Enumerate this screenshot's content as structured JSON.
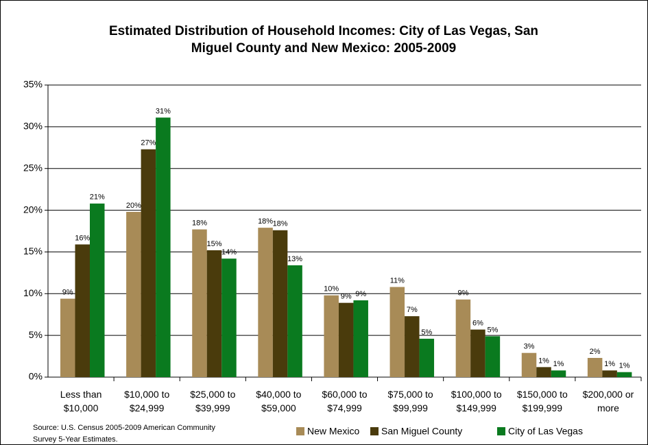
{
  "chart_data": {
    "type": "bar",
    "title": "Estimated Distribution of Household Incomes: City of Las Vegas, San\nMiguel County and New Mexico: 2005-2009",
    "source": "Source: U.S. Census 2005-2009 American Community\nSurvey 5-Year Estimates.",
    "categories": [
      "Less than\n$10,000",
      "$10,000 to\n$24,999",
      "$25,000 to\n$39,999",
      "$40,000 to\n$59,000",
      "$60,000 to\n$74,999",
      "$75,000 to\n$99,999",
      "$100,000 to\n$149,999",
      "$150,000 to\n$199,999",
      "$200,000 or\nmore"
    ],
    "series": [
      {
        "name": "New Mexico",
        "color": "#a88b57",
        "values": [
          9.4,
          19.8,
          17.7,
          17.9,
          9.8,
          10.8,
          9.3,
          2.9,
          2.3
        ],
        "value_labels": [
          "9%",
          "20%",
          "18%",
          "18%",
          "10%",
          "11%",
          "9%",
          "3%",
          "2%"
        ]
      },
      {
        "name": "San Miguel County",
        "color": "#4a3b0c",
        "values": [
          15.9,
          27.3,
          15.2,
          17.6,
          8.9,
          7.3,
          5.7,
          1.2,
          0.8
        ],
        "value_labels": [
          "16%",
          "27%",
          "15%",
          "18%",
          "9%",
          "7%",
          "6%",
          "1%",
          "1%"
        ]
      },
      {
        "name": "City of Las Vegas",
        "color": "#0a7a1f",
        "values": [
          20.8,
          31.1,
          14.2,
          13.4,
          9.2,
          4.6,
          4.9,
          0.8,
          0.6
        ],
        "value_labels": [
          "21%",
          "31%",
          "14%",
          "13%",
          "9%",
          "5%",
          "5%",
          "1%",
          "1%"
        ]
      }
    ],
    "ylim": [
      0,
      35
    ],
    "yticks": [
      {
        "value": 0,
        "label": "0%"
      },
      {
        "value": 5,
        "label": "5%"
      },
      {
        "value": 10,
        "label": "10%"
      },
      {
        "value": 15,
        "label": "15%"
      },
      {
        "value": 20,
        "label": "20%"
      },
      {
        "value": 25,
        "label": "25%"
      },
      {
        "value": 30,
        "label": "30%"
      },
      {
        "value": 35,
        "label": "35%"
      }
    ],
    "grid": true,
    "legend": "bottom"
  }
}
